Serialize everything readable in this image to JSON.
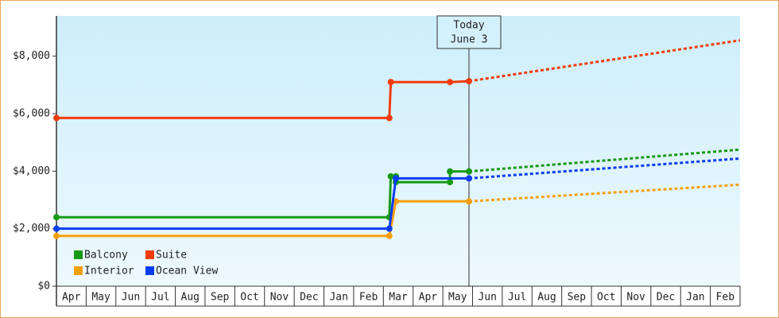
{
  "chart_data": {
    "type": "line",
    "x_categories": [
      "Apr",
      "May",
      "Jun",
      "Jul",
      "Aug",
      "Sep",
      "Oct",
      "Nov",
      "Dec",
      "Jan",
      "Feb",
      "Mar",
      "Apr",
      "May",
      "Jun",
      "Jul",
      "Aug",
      "Sep",
      "Oct",
      "Nov",
      "Dec",
      "Jan",
      "Feb"
    ],
    "xlim": [
      0,
      23
    ],
    "ylim": [
      0,
      9400
    ],
    "yticks": [
      {
        "value": 0,
        "label": "$0"
      },
      {
        "value": 2000,
        "label": "$2,000"
      },
      {
        "value": 4000,
        "label": "$4,000"
      },
      {
        "value": 6000,
        "label": "$6,000"
      },
      {
        "value": 8000,
        "label": "$8,000"
      }
    ],
    "legend": "bottom-left",
    "series": [
      {
        "name": "Balcony",
        "color": "#169a16",
        "x": [
          0,
          11.2,
          11.25,
          11.42,
          11.42,
          13.24,
          13.24,
          13.88
        ],
        "values": [
          2400,
          2400,
          3820,
          3820,
          3620,
          3620,
          3990,
          3990
        ],
        "forecast_x": [
          13.88,
          23
        ],
        "forecast_values": [
          3990,
          4750
        ]
      },
      {
        "name": "Suite",
        "color": "#f03c0c",
        "x": [
          0,
          11.2,
          11.25,
          13.24,
          13.88
        ],
        "values": [
          5850,
          5850,
          7100,
          7100,
          7130
        ],
        "forecast_x": [
          13.88,
          23
        ],
        "forecast_values": [
          7130,
          8550
        ]
      },
      {
        "name": "Interior",
        "color": "#f5a00a",
        "x": [
          0,
          11.2,
          11.42,
          13.88
        ],
        "values": [
          1750,
          1750,
          2950,
          2950
        ],
        "forecast_x": [
          13.88,
          23
        ],
        "forecast_values": [
          2950,
          3530
        ]
      },
      {
        "name": "Ocean View",
        "color": "#0a3cf0",
        "x": [
          0,
          11.2,
          11.42,
          13.88
        ],
        "values": [
          2000,
          2000,
          3750,
          3750
        ],
        "forecast_x": [
          13.88,
          23
        ],
        "forecast_values": [
          3750,
          4440
        ]
      }
    ],
    "annotation": {
      "x": 13.88,
      "text": [
        "Today",
        "June 3"
      ]
    }
  }
}
